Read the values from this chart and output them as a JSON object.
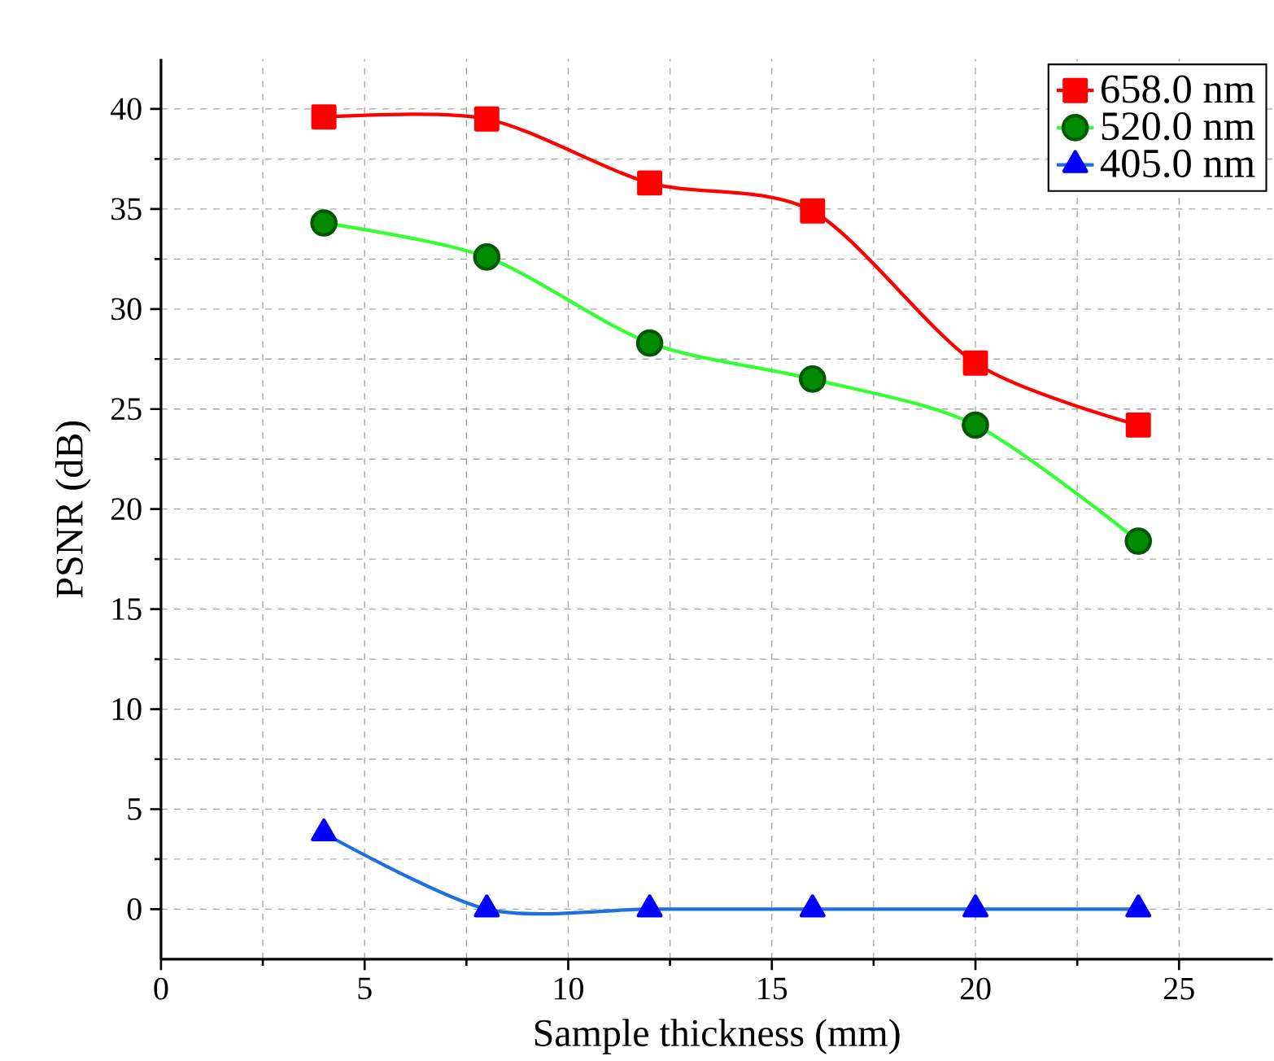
{
  "chart_data": {
    "type": "line",
    "xlabel": "Sample thickness (mm)",
    "ylabel": "PSNR (dB)",
    "x": [
      4,
      8,
      12,
      16,
      20,
      24
    ],
    "series": [
      {
        "name": "658.0 nm",
        "color": "#ff0000",
        "marker": "square",
        "values": [
          39.6,
          39.5,
          36.3,
          34.9,
          27.3,
          24.2
        ]
      },
      {
        "name": "520.0 nm",
        "color": "#33ff33",
        "marker": "circle",
        "values": [
          34.3,
          32.6,
          28.3,
          26.5,
          24.2,
          18.4
        ]
      },
      {
        "name": "405.0 nm",
        "color": "#1f6fdf",
        "marker": "triangle",
        "values": [
          3.8,
          0,
          0,
          0,
          0,
          0
        ]
      }
    ],
    "xlim": [
      0,
      27.3
    ],
    "ylim": [
      -2.5,
      42.5
    ],
    "xticks": [
      0,
      5,
      10,
      15,
      20,
      25
    ],
    "yticks": [
      0,
      5,
      10,
      15,
      20,
      25,
      30,
      35,
      40
    ],
    "grid": true,
    "legend": "top right",
    "line_style": "solid"
  }
}
